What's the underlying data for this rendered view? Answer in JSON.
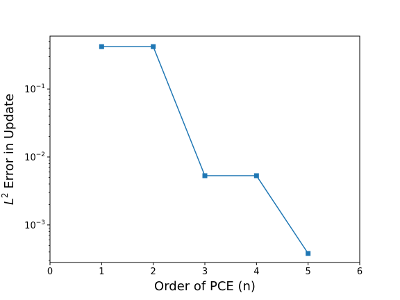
{
  "chart_data": {
    "type": "line",
    "xlabel": "Order of PCE (n)",
    "ylabel": {
      "base": "L",
      "superscript": "2",
      "text": " Error in Update"
    },
    "xlim": [
      0,
      6
    ],
    "ylim": [
      0.00028,
      0.6
    ],
    "yscale": "log",
    "grid": false,
    "x_ticks": [
      {
        "value": 0,
        "label": "0"
      },
      {
        "value": 1,
        "label": "1"
      },
      {
        "value": 2,
        "label": "2"
      },
      {
        "value": 3,
        "label": "3"
      },
      {
        "value": 4,
        "label": "4"
      },
      {
        "value": 5,
        "label": "5"
      },
      {
        "value": 6,
        "label": "6"
      }
    ],
    "y_ticks": [
      {
        "value": 0.1,
        "base": "10",
        "exponent": "−1"
      },
      {
        "value": 0.01,
        "base": "10",
        "exponent": "−2"
      },
      {
        "value": 0.001,
        "base": "10",
        "exponent": "−3"
      }
    ],
    "series": [
      {
        "color": "#1f77b4",
        "marker": "square",
        "x": [
          1,
          2,
          3,
          4,
          5
        ],
        "y": [
          0.42,
          0.42,
          0.0053,
          0.0053,
          0.00038
        ]
      }
    ]
  }
}
